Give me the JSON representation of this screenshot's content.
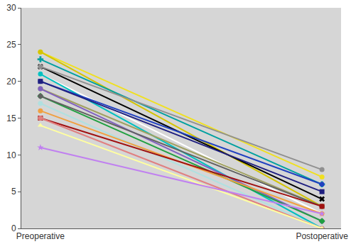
{
  "chart_data": {
    "type": "line",
    "categories": [
      "Preoperative",
      "Postoperative"
    ],
    "ylim": [
      0,
      30
    ],
    "yticks": [
      0,
      5,
      10,
      15,
      20,
      25,
      30
    ],
    "grid": false,
    "series": [
      {
        "color": "#f0e020",
        "marker": "circle",
        "values": [
          24,
          7
        ]
      },
      {
        "color": "#d4c400",
        "marker": "circle",
        "values": [
          24,
          3
        ]
      },
      {
        "color": "#00a0a0",
        "marker": "cross",
        "values": [
          23,
          6
        ]
      },
      {
        "color": "#000000",
        "marker": "x",
        "values": [
          22,
          4
        ]
      },
      {
        "color": "#909090",
        "marker": "circle",
        "values": [
          22,
          8
        ]
      },
      {
        "color": "#ffffff",
        "marker": "circle",
        "values": [
          21,
          2
        ]
      },
      {
        "color": "#00c0c0",
        "marker": "circle",
        "values": [
          21,
          0
        ]
      },
      {
        "color": "#2040c0",
        "marker": "circle",
        "values": [
          20,
          6
        ]
      },
      {
        "color": "#202080",
        "marker": "square",
        "values": [
          20,
          5
        ]
      },
      {
        "color": "#a0a060",
        "marker": "circle",
        "values": [
          19,
          3
        ]
      },
      {
        "color": "#8060c0",
        "marker": "circle",
        "values": [
          19,
          1
        ]
      },
      {
        "color": "#20a040",
        "marker": "diamond",
        "values": [
          18,
          1
        ]
      },
      {
        "color": "#606060",
        "marker": "circle",
        "values": [
          18,
          3
        ]
      },
      {
        "color": "#b0e0e0",
        "marker": "circle",
        "values": [
          17,
          0
        ]
      },
      {
        "color": "#f0a040",
        "marker": "circle",
        "values": [
          16,
          2
        ]
      },
      {
        "color": "#a01010",
        "marker": "square",
        "values": [
          15,
          3
        ]
      },
      {
        "color": "#e08080",
        "marker": "circle",
        "values": [
          15,
          0
        ]
      },
      {
        "color": "#ffffa0",
        "marker": "triangle-up",
        "values": [
          14,
          0
        ]
      },
      {
        "color": "#c080f0",
        "marker": "star",
        "values": [
          11,
          2
        ]
      }
    ]
  }
}
